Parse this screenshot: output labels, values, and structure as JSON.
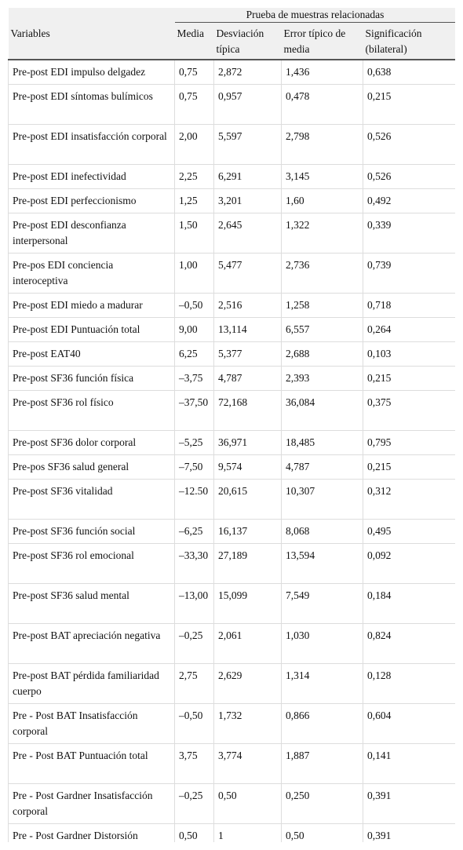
{
  "header": {
    "group": "Prueba de muestras relacionadas",
    "columns": [
      "Variables",
      "Media",
      "Desviación típica",
      "Error típico de media",
      "Significación (bilateral)"
    ]
  },
  "table": {
    "rows": [
      [
        "Pre-post EDI impulso delgadez",
        "0,75",
        "2,872",
        "1,436",
        "0,638"
      ],
      [
        "Pre-post EDI síntomas bulímicos",
        "0,75",
        "0,957",
        "0,478",
        "0,215"
      ],
      [
        "Pre-post EDI insatisfacción corporal",
        "2,00",
        "5,597",
        "2,798",
        "0,526"
      ],
      [
        "Pre-post EDI inefectividad",
        "2,25",
        "6,291",
        "3,145",
        "0,526"
      ],
      [
        "Pre-post EDI perfeccionismo",
        "1,25",
        "3,201",
        "1,60",
        "0,492"
      ],
      [
        "Pre-post EDI desconfianza interpersonal",
        "1,50",
        "2,645",
        "1,322",
        "0,339"
      ],
      [
        "Pre-pos EDI conciencia interoceptiva",
        "1,00",
        "5,477",
        "2,736",
        "0,739"
      ],
      [
        "Pre-post EDI miedo a madurar",
        "–0,50",
        "2,516",
        "1,258",
        "0,718"
      ],
      [
        "Pre-post EDI Puntuación total",
        "9,00",
        "13,114",
        "6,557",
        "0,264"
      ],
      [
        "Pre-post EAT40",
        "6,25",
        "5,377",
        "2,688",
        "0,103"
      ],
      [
        "Pre-post SF36 función física",
        "–3,75",
        "4,787",
        "2,393",
        "0,215"
      ],
      [
        "Pre-post SF36 rol físico",
        "–37,50",
        "72,168",
        "36,084",
        "0,375"
      ],
      [
        "Pre-post SF36 dolor corporal",
        "–5,25",
        "36,971",
        "18,485",
        "0,795"
      ],
      [
        "Pre-pos SF36 salud general",
        "–7,50",
        "9,574",
        "4,787",
        "0,215"
      ],
      [
        "Pre-post SF36 vitalidad",
        "–12.50",
        "20,615",
        "10,307",
        "0,312"
      ],
      [
        "Pre-post SF36 función social",
        "–6,25",
        "16,137",
        "8,068",
        "0,495"
      ],
      [
        "Pre-post SF36 rol emocional",
        "–33,30",
        "27,189",
        "13,594",
        "0,092"
      ],
      [
        "Pre-post SF36 salud mental",
        "–13,00",
        "15,099",
        "7,549",
        "0,184"
      ],
      [
        "Pre-post BAT apreciación negativa",
        "–0,25",
        "2,061",
        "1,030",
        "0,824"
      ],
      [
        "Pre-post BAT pérdida familiaridad cuerpo",
        "2,75",
        "2,629",
        "1,314",
        "0,128"
      ],
      [
        "Pre - Post BAT Insatisfacción corporal",
        "–0,50",
        "1,732",
        "0,866",
        "0,604"
      ],
      [
        "Pre - Post BAT Puntuación total",
        "3,75",
        "3,774",
        "1,887",
        "0,141"
      ],
      [
        "Pre - Post Gardner Insatisfacción corporal",
        "–0,25",
        "0,50",
        "0,250",
        "0,391"
      ],
      [
        "Pre - Post Gardner Distorsión",
        "0,50",
        "1",
        "0,50",
        "0,391"
      ]
    ]
  }
}
